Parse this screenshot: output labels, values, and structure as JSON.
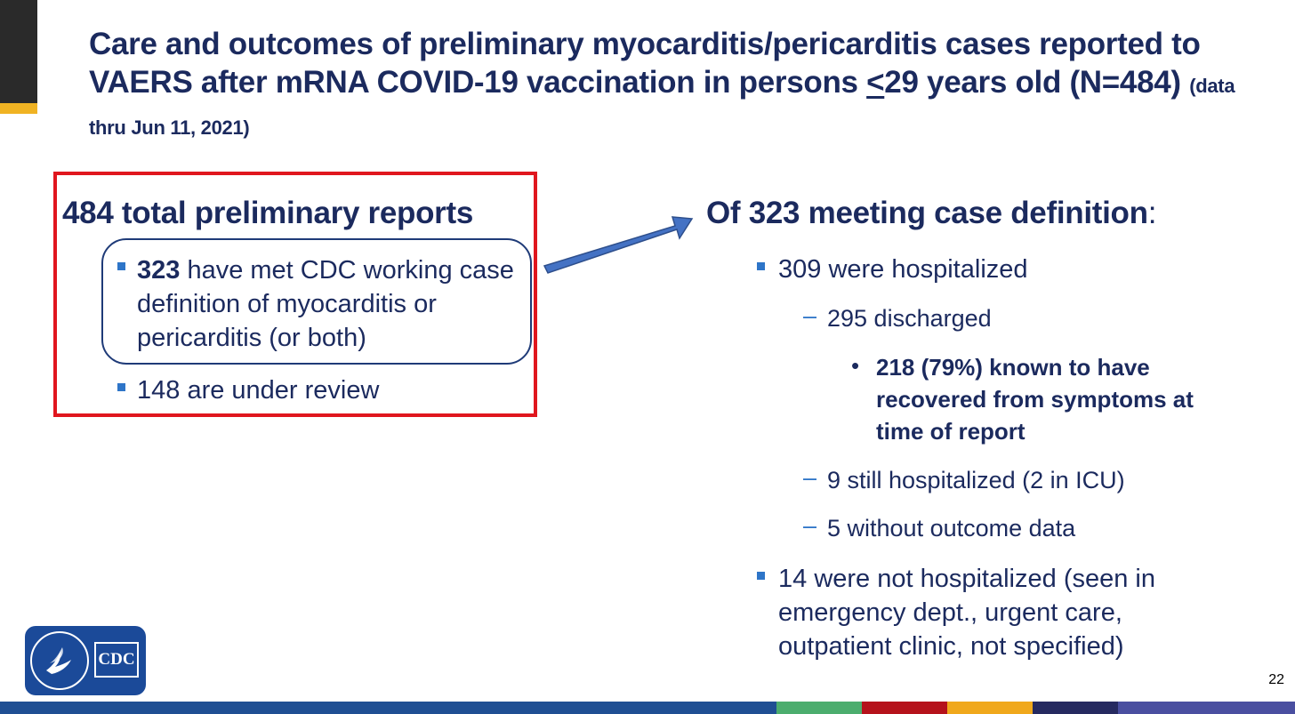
{
  "slide": {
    "title_main": "Care and outcomes of preliminary myocarditis/pericarditis cases reported to VAERS after mRNA COVID-19 vaccination in persons ",
    "title_lt": "<",
    "title_age": "29 years old (N=484) ",
    "title_note": "(data thru Jun 11, 2021)",
    "page_number": "22"
  },
  "left": {
    "heading": "484 total preliminary reports",
    "bullet1_bold": "323",
    "bullet1_rest": " have met CDC working case definition of myocarditis or pericarditis (or both)",
    "bullet2": "148 are under review"
  },
  "right": {
    "heading": "Of 323 meeting case definition",
    "heading_colon": ":",
    "hospitalized": "309 were hospitalized",
    "discharged": "295 discharged",
    "recovered": "218 (79%) known to have recovered from symptoms at time of report",
    "still": "9 still hospitalized (2 in ICU)",
    "no_outcome": "5 without outcome data",
    "not_hosp": "14 were not hospitalized (seen in emergency dept., urgent care, outpatient clinic, not specified)",
    "dash": "–",
    "dot": "•"
  },
  "logo": {
    "text": "CDC"
  },
  "colors": {
    "navy": "#1b2a5e",
    "red_box": "#e0161e",
    "bullet_blue": "#2e75c8",
    "arrow": "#4472c4"
  },
  "footer_colors": [
    "#1f4f93",
    "#4cad6e",
    "#b5121b",
    "#f0a81c",
    "#262a60",
    "#4a4fa0"
  ]
}
